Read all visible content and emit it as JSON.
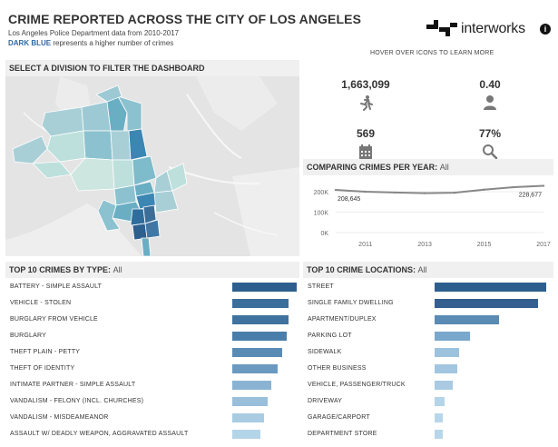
{
  "header": {
    "title": "CRIME REPORTED ACROSS THE CITY OF LOS ANGELES",
    "subtitle": "Los Angeles Police Department data from 2010-2017",
    "legend_highlight": "DARK BLUE",
    "legend_rest": " represents a higher number of crimes"
  },
  "branding": {
    "logo_text": "interworks",
    "info_label": "i",
    "hover_hint": "HOVER OVER ICONS TO LEARN MORE"
  },
  "map_panel": {
    "title": "SELECT A DIVISION TO FILTER THE DASHBOARD"
  },
  "kpis": [
    {
      "value": "1,663,099",
      "icon": "running-person-icon"
    },
    {
      "value": "0.40",
      "icon": "person-icon"
    },
    {
      "value": "569",
      "icon": "calendar-icon"
    },
    {
      "value": "77%",
      "icon": "magnifier-icon"
    }
  ],
  "per_year": {
    "title": "COMPARING CRIMES PER YEAR:",
    "filter": "All"
  },
  "chart_data": [
    {
      "type": "line",
      "title": "COMPARING CRIMES PER YEAR: All",
      "x": [
        2010,
        2011,
        2012,
        2013,
        2014,
        2015,
        2016,
        2017
      ],
      "series": [
        {
          "name": "Crimes",
          "values": [
            208645,
            200000,
            196000,
            193000,
            195000,
            210000,
            222000,
            228677
          ]
        }
      ],
      "ylim": [
        0,
        240000
      ],
      "y_ticks": [
        "0K",
        "100K",
        "200K"
      ],
      "x_ticks": [
        "2011",
        "2013",
        "2015",
        "2017"
      ],
      "annotations": [
        "208,645",
        "228,677"
      ],
      "color": "#888888"
    },
    {
      "type": "bar",
      "title": "TOP 10 CRIMES BY TYPE: All",
      "categories": [
        "BATTERY - SIMPLE ASSAULT",
        "VEHICLE - STOLEN",
        "BURGLARY FROM VEHICLE",
        "BURGLARY",
        "THEFT PLAIN - PETTY",
        "THEFT OF IDENTITY",
        "INTIMATE PARTNER - SIMPLE ASSAULT",
        "VANDALISM - FELONY (INCL. CHURCHES)",
        "VANDALISM - MISDEAMEANOR",
        "ASSAULT W/ DEADLY WEAPON, AGGRAVATED ASSAULT"
      ],
      "values": [
        100,
        88,
        87,
        84,
        78,
        70,
        60,
        55,
        49,
        44
      ],
      "colors": [
        "#2e5e8e",
        "#3c6e9c",
        "#3f729f",
        "#4a7eaa",
        "#5a8bb4",
        "#6a9ac0",
        "#8ab3d3",
        "#99bfdb",
        "#a9cce3",
        "#b4d4e8"
      ]
    },
    {
      "type": "bar",
      "title": "TOP 10 CRIME LOCATIONS: All",
      "categories": [
        "STREET",
        "SINGLE FAMILY DWELLING",
        "APARTMENT/DUPLEX",
        "PARKING LOT",
        "SIDEWALK",
        "OTHER BUSINESS",
        "VEHICLE, PASSENGER/TRUCK",
        "DRIVEWAY",
        "GARAGE/CARPORT",
        "DEPARTMENT STORE"
      ],
      "values": [
        100,
        93,
        58,
        32,
        22,
        20,
        16,
        9,
        7,
        7
      ],
      "colors": [
        "#2e5e8e",
        "#345f8f",
        "#5a8bb4",
        "#7aa7cc",
        "#9dc2de",
        "#a3c6e0",
        "#a9cae2",
        "#b4d4e8",
        "#b8d6ea",
        "#b8d6ea"
      ]
    }
  ]
}
